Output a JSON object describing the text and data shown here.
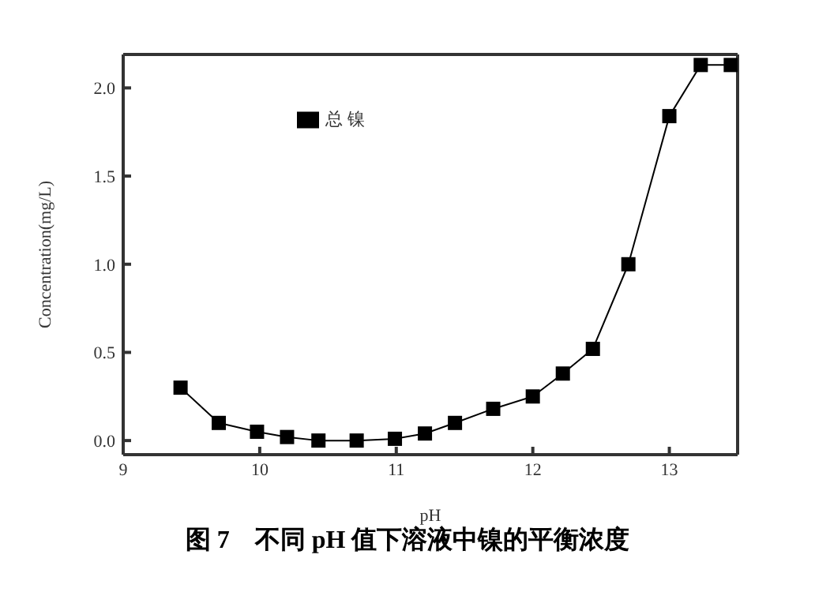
{
  "chart_data": {
    "type": "line",
    "title": "图 7　不同 pH 值下溶液中镍的平衡浓度",
    "xlabel": "pH",
    "ylabel": "Concentration(mg/L)",
    "x": [
      9.42,
      9.7,
      9.98,
      10.2,
      10.43,
      10.71,
      10.99,
      11.21,
      11.43,
      11.71,
      12.0,
      12.22,
      12.44,
      12.7,
      13.0,
      13.23,
      13.45
    ],
    "series": [
      {
        "name": "总 镍",
        "color": "#000000",
        "values": [
          0.3,
          0.1,
          0.05,
          0.02,
          0,
          0,
          0.01,
          0.04,
          0.1,
          0.18,
          0.25,
          0.38,
          0.52,
          1.0,
          1.84,
          2.13,
          2.13
        ]
      }
    ],
    "xlim": [
      9,
      13.5
    ],
    "xticks": [
      9,
      10,
      11,
      12,
      13
    ],
    "ylim": [
      -0.08,
      2.19
    ],
    "yticks": [
      {
        "value": 0,
        "label": "0.0"
      },
      {
        "value": 0.5,
        "label": "0.5"
      },
      {
        "value": 1,
        "label": "1.0"
      },
      {
        "value": 1.5,
        "label": "1.5"
      },
      {
        "value": 2,
        "label": "2.0"
      }
    ],
    "grid": false,
    "legend": "top",
    "marker": "square",
    "line_style": "solid"
  }
}
